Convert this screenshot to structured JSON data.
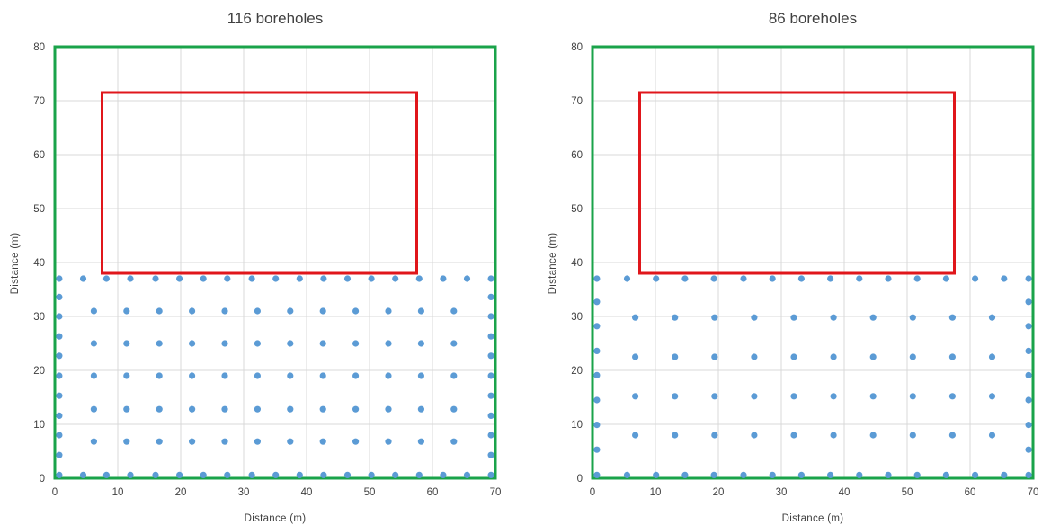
{
  "chart_data": [
    {
      "type": "scatter",
      "title": "116 boreholes",
      "xlabel": "Distance (m)",
      "ylabel": "Distance (m)",
      "xlim": [
        0,
        70
      ],
      "ylim": [
        0,
        80
      ],
      "xticks": [
        0,
        10,
        20,
        30,
        40,
        50,
        60,
        70
      ],
      "yticks": [
        0,
        10,
        20,
        30,
        40,
        50,
        60,
        70,
        80
      ],
      "grid": true,
      "site_boundary": {
        "x": [
          0,
          70
        ],
        "y": [
          0,
          80
        ],
        "color": "#1aa34a"
      },
      "building_footprint": {
        "x": [
          7.5,
          57.5
        ],
        "y": [
          38,
          71.5
        ],
        "color": "#e0161b"
      },
      "marker_color": "#5b9bd5",
      "rows": [
        {
          "y": 37,
          "x": [
            0.7,
            4.5,
            8.2,
            12,
            16,
            19.8,
            23.6,
            27.4,
            31.3,
            35.1,
            38.9,
            42.7,
            46.5,
            50.3,
            54.1,
            57.9,
            61.7,
            65.5,
            69.3
          ]
        },
        {
          "y": 31,
          "x": [
            6.2,
            11.4,
            16.6,
            21.8,
            27,
            32.2,
            37.4,
            42.6,
            47.8,
            53,
            58.2,
            63.4
          ]
        },
        {
          "y": 25,
          "x": [
            6.2,
            11.4,
            16.6,
            21.8,
            27,
            32.2,
            37.4,
            42.6,
            47.8,
            53,
            58.2,
            63.4
          ]
        },
        {
          "y": 19,
          "x": [
            6.2,
            11.4,
            16.6,
            21.8,
            27,
            32.2,
            37.4,
            42.6,
            47.8,
            53,
            58.2,
            63.4
          ]
        },
        {
          "y": 12.8,
          "x": [
            6.2,
            11.4,
            16.6,
            21.8,
            27,
            32.2,
            37.4,
            42.6,
            47.8,
            53,
            58.2,
            63.4
          ]
        },
        {
          "y": 6.8,
          "x": [
            6.2,
            11.4,
            16.6,
            21.8,
            27,
            32.2,
            37.4,
            42.6,
            47.8,
            53,
            58.2,
            63.4
          ]
        },
        {
          "y": 0.6,
          "x": [
            0.7,
            4.5,
            8.2,
            12,
            16,
            19.8,
            23.6,
            27.4,
            31.3,
            35.1,
            38.9,
            42.7,
            46.5,
            50.3,
            54.1,
            57.9,
            61.7,
            65.5,
            69.3
          ]
        }
      ],
      "columns": [
        {
          "x": 0.7,
          "y": [
            4.3,
            8,
            11.6,
            15.3,
            19,
            22.7,
            26.3,
            30,
            33.6
          ]
        },
        {
          "x": 69.3,
          "y": [
            4.3,
            8,
            11.6,
            15.3,
            19,
            22.7,
            26.3,
            30,
            33.6
          ]
        }
      ]
    },
    {
      "type": "scatter",
      "title": "86 boreholes",
      "xlabel": "Distance (m)",
      "ylabel": "Distance (m)",
      "xlim": [
        0,
        70
      ],
      "ylim": [
        0,
        80
      ],
      "xticks": [
        0,
        10,
        20,
        30,
        40,
        50,
        60,
        70
      ],
      "yticks": [
        0,
        10,
        20,
        30,
        40,
        50,
        60,
        70,
        80
      ],
      "grid": true,
      "site_boundary": {
        "x": [
          0,
          70
        ],
        "y": [
          0,
          80
        ],
        "color": "#1aa34a"
      },
      "building_footprint": {
        "x": [
          7.5,
          57.5
        ],
        "y": [
          38,
          71.5
        ],
        "color": "#e0161b"
      },
      "marker_color": "#5b9bd5",
      "rows": [
        {
          "y": 37,
          "x": [
            0.7,
            5.5,
            10.1,
            14.7,
            19.3,
            24,
            28.6,
            33.2,
            37.8,
            42.4,
            47,
            51.6,
            56.2,
            60.8,
            65.4,
            69.3
          ]
        },
        {
          "y": 29.8,
          "x": [
            6.8,
            13.1,
            19.4,
            25.7,
            32,
            38.3,
            44.6,
            50.9,
            57.2,
            63.5
          ]
        },
        {
          "y": 22.5,
          "x": [
            6.8,
            13.1,
            19.4,
            25.7,
            32,
            38.3,
            44.6,
            50.9,
            57.2,
            63.5
          ]
        },
        {
          "y": 15.2,
          "x": [
            6.8,
            13.1,
            19.4,
            25.7,
            32,
            38.3,
            44.6,
            50.9,
            57.2,
            63.5
          ]
        },
        {
          "y": 8,
          "x": [
            6.8,
            13.1,
            19.4,
            25.7,
            32,
            38.3,
            44.6,
            50.9,
            57.2,
            63.5
          ]
        },
        {
          "y": 0.6,
          "x": [
            0.7,
            5.5,
            10.1,
            14.7,
            19.3,
            24,
            28.6,
            33.2,
            37.8,
            42.4,
            47,
            51.6,
            56.2,
            60.8,
            65.4,
            69.3
          ]
        }
      ],
      "columns": [
        {
          "x": 0.7,
          "y": [
            5.3,
            9.9,
            14.5,
            19.1,
            23.6,
            28.2,
            32.7
          ]
        },
        {
          "x": 69.3,
          "y": [
            5.3,
            9.9,
            14.5,
            19.1,
            23.6,
            28.2,
            32.7
          ]
        }
      ]
    }
  ]
}
